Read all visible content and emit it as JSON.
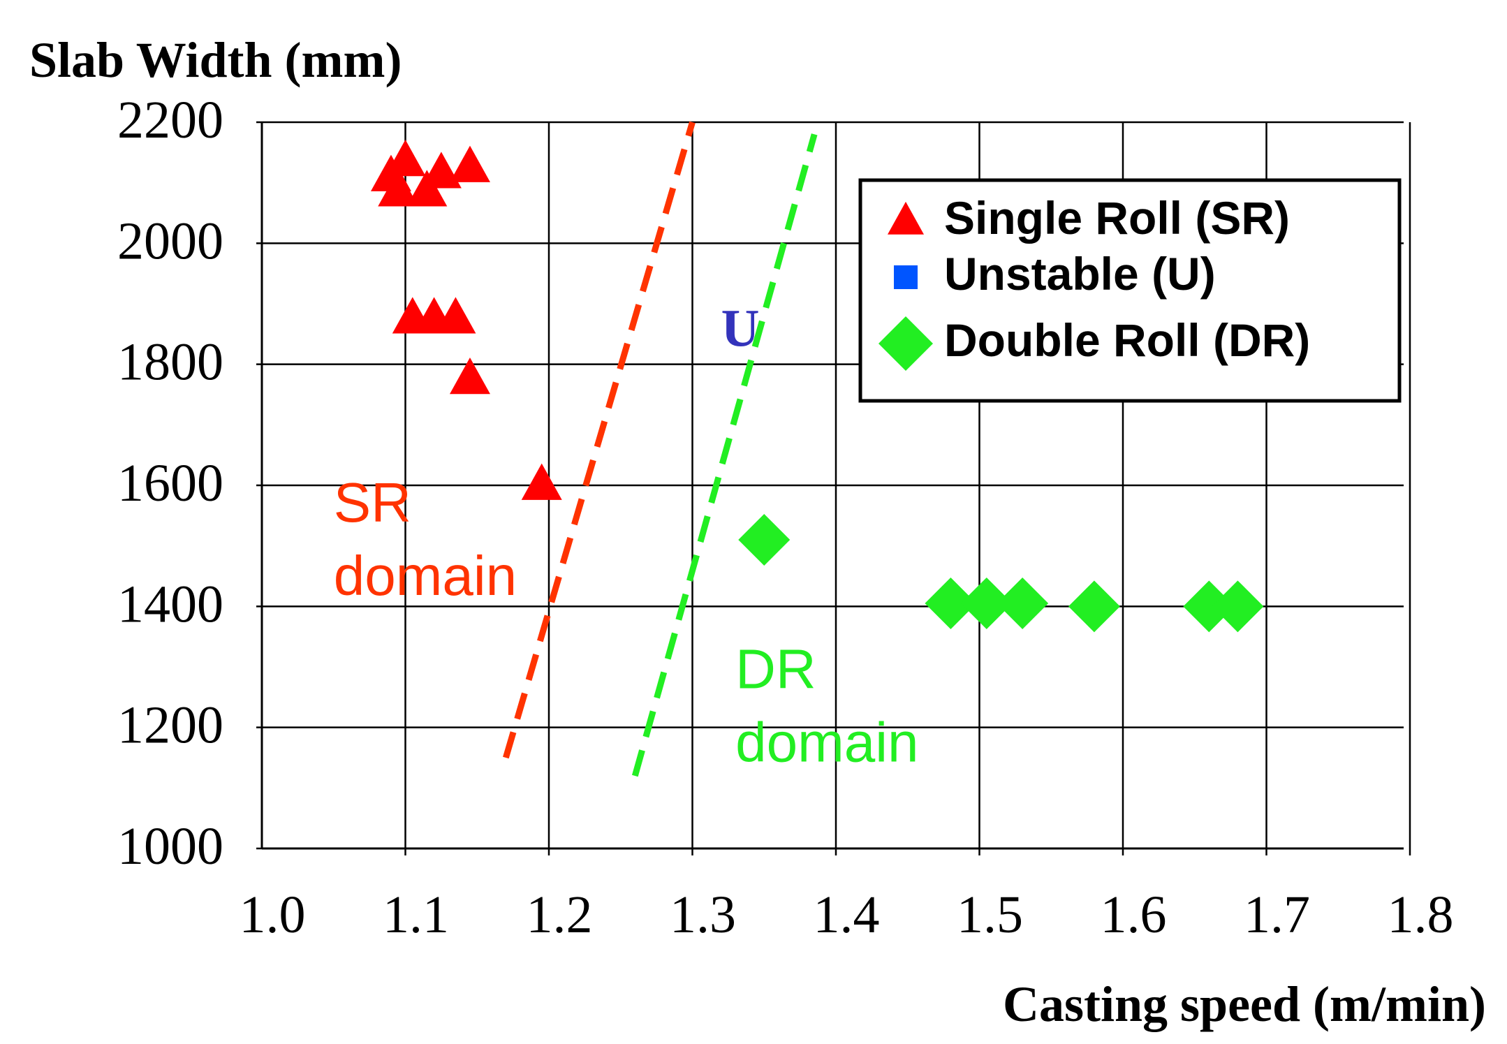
{
  "chart_data": {
    "type": "scatter",
    "ylabel": "Slab Width (mm)",
    "xlabel": "Casting speed (m/min)",
    "xlim": [
      1.0,
      1.8
    ],
    "ylim": [
      1000,
      2200
    ],
    "x_ticks": [
      "1.0",
      "1.1",
      "1.2",
      "1.3",
      "1.4",
      "1.5",
      "1.6",
      "1.7",
      "1.8"
    ],
    "y_ticks": [
      "2200",
      "2000",
      "1800",
      "1600",
      "1400",
      "1200",
      "1000"
    ],
    "grid": true,
    "legend_position": "top-right",
    "colors": {
      "sr": "#ff0000",
      "u": "#0055ff",
      "dr": "#22ee22",
      "sr_line": "#ff3300",
      "dr_line": "#22ee22",
      "u_label": "#3333bb"
    },
    "series": [
      {
        "name": "Single Roll (SR)",
        "marker": "triangle",
        "points": [
          {
            "x": 1.09,
            "y": 2110
          },
          {
            "x": 1.1,
            "y": 2135
          },
          {
            "x": 1.095,
            "y": 2085
          },
          {
            "x": 1.115,
            "y": 2085
          },
          {
            "x": 1.125,
            "y": 2115
          },
          {
            "x": 1.145,
            "y": 2125
          },
          {
            "x": 1.105,
            "y": 1875
          },
          {
            "x": 1.12,
            "y": 1875
          },
          {
            "x": 1.135,
            "y": 1875
          },
          {
            "x": 1.145,
            "y": 1775
          },
          {
            "x": 1.195,
            "y": 1600
          }
        ]
      },
      {
        "name": "Unstable (U)",
        "marker": "square",
        "points": []
      },
      {
        "name": "Double Roll (DR)",
        "marker": "diamond",
        "points": [
          {
            "x": 1.35,
            "y": 1510
          },
          {
            "x": 1.48,
            "y": 1405
          },
          {
            "x": 1.505,
            "y": 1405
          },
          {
            "x": 1.53,
            "y": 1405
          },
          {
            "x": 1.58,
            "y": 1400
          },
          {
            "x": 1.66,
            "y": 1400
          },
          {
            "x": 1.68,
            "y": 1400
          }
        ]
      }
    ],
    "boundary_lines": [
      {
        "id": "sr-boundary",
        "from": {
          "x": 1.17,
          "y": 1150
        },
        "to": {
          "x": 1.3,
          "y": 2200
        }
      },
      {
        "id": "dr-boundary",
        "from": {
          "x": 1.26,
          "y": 1120
        },
        "to": {
          "x": 1.385,
          "y": 2180
        }
      }
    ],
    "annotations": [
      {
        "id": "sr-domain",
        "lines": [
          "SR",
          "domain"
        ],
        "x": 1.05,
        "y": 1540
      },
      {
        "id": "u-label",
        "lines": [
          "U"
        ],
        "x": 1.32,
        "y": 1830
      },
      {
        "id": "dr-domain",
        "lines": [
          "DR",
          "domain"
        ],
        "x": 1.33,
        "y": 1265
      }
    ]
  }
}
